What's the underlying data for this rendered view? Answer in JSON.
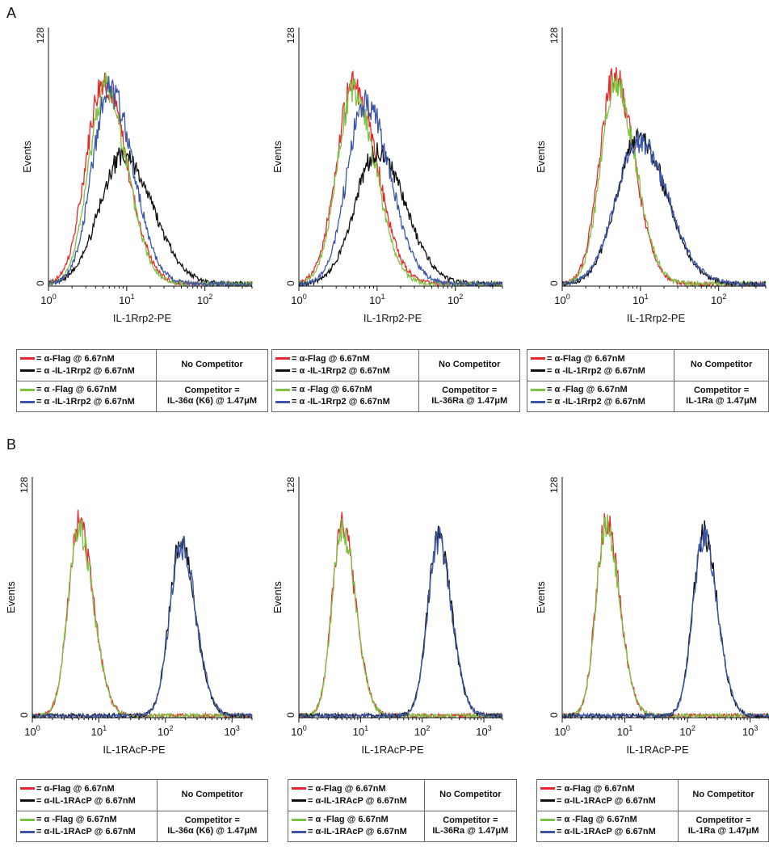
{
  "panels": {
    "a": "A",
    "b": "B"
  },
  "colors": {
    "red": "#e8262e",
    "black": "#111111",
    "green": "#7dc242",
    "blue": "#3c56a8"
  },
  "legend_symbol": "=",
  "legends": [
    {
      "row1_a": "α-Flag @ 6.67nM",
      "row1_b": "α -IL-1Rrp2 @ 6.67nM",
      "row1_comp": "No Competitor",
      "row2_a": "α -Flag @ 6.67nM",
      "row2_b": "α -IL-1Rrp2 @ 6.67nM",
      "row2_comp_1": "Competitor =",
      "row2_comp_2": "IL-36α (K6) @ 1.47μM"
    },
    {
      "row1_a": "α-Flag @ 6.67nM",
      "row1_b": "α -IL-1Rrp2 @ 6.67nM",
      "row1_comp": "No Competitor",
      "row2_a": "α -Flag @ 6.67nM",
      "row2_b": "α -IL-1Rrp2 @ 6.67nM",
      "row2_comp_1": "Competitor =",
      "row2_comp_2": "IL-36Ra @ 1.47μM"
    },
    {
      "row1_a": "α-Flag @ 6.67nM",
      "row1_b": "α -IL-1Rrp2 @ 6.67nM",
      "row1_comp": "No Competitor",
      "row2_a": "α -Flag @ 6.67nM",
      "row2_b": "α -IL-1Rrp2 @ 6.67nM",
      "row2_comp_1": "Competitor =",
      "row2_comp_2": "IL-1Ra @ 1.47μM"
    },
    {
      "row1_a": "α-Flag @ 6.67nM",
      "row1_b": "α-IL-1RAcP @ 6.67nM",
      "row1_comp": "No Competitor",
      "row2_a": "α -Flag @ 6.67nM",
      "row2_b": "α-IL-1RAcP @ 6.67nM",
      "row2_comp_1": "Competitor =",
      "row2_comp_2": "IL-36α (K6) @ 1.47μM"
    },
    {
      "row1_a": "α-Flag @ 6.67nM",
      "row1_b": "α-IL-1RAcP @ 6.67nM",
      "row1_comp": "No Competitor",
      "row2_a": "α -Flag @ 6.67nM",
      "row2_b": "α-IL-1RAcP @ 6.67nM",
      "row2_comp_1": "Competitor =",
      "row2_comp_2": "IL-36Ra @ 1.47μM"
    },
    {
      "row1_a": "α-Flag @ 6.67nM",
      "row1_b": "α-IL-1RAcP @ 6.67nM",
      "row1_comp": "No Competitor",
      "row2_a": "α -Flag @ 6.67nM",
      "row2_b": "α-IL-1RAcP @ 6.67nM",
      "row2_comp_1": "Competitor =",
      "row2_comp_2": "IL-1Ra @ 1.47μM"
    }
  ],
  "chart_data": [
    {
      "type": "area",
      "xlabel": "IL-1Rrp2-PE",
      "ylabel": "Events",
      "xscale": "log",
      "xlim": [
        1,
        400
      ],
      "ylim": [
        0,
        128
      ],
      "x_ticks": [
        "0",
        "1",
        "2"
      ],
      "y_ticks": [
        "0",
        "128"
      ],
      "series": [
        {
          "color": "red",
          "peak_x": 5.0,
          "peak_y": 101,
          "width": 0.22,
          "tail": 0.3
        },
        {
          "color": "black",
          "peak_x": 9.0,
          "peak_y": 63,
          "width": 0.3,
          "tail": 0.38
        },
        {
          "color": "green",
          "peak_x": 5.3,
          "peak_y": 97,
          "width": 0.21,
          "tail": 0.28
        },
        {
          "color": "blue",
          "peak_x": 6.0,
          "peak_y": 96,
          "width": 0.22,
          "tail": 0.3
        }
      ]
    },
    {
      "type": "area",
      "xlabel": "IL-1Rrp2-PE",
      "ylabel": "Events",
      "xscale": "log",
      "xlim": [
        1,
        400
      ],
      "ylim": [
        0,
        128
      ],
      "x_ticks": [
        "0",
        "1",
        "2"
      ],
      "y_ticks": [
        "0",
        "128"
      ],
      "series": [
        {
          "color": "red",
          "peak_x": 5.0,
          "peak_y": 98,
          "width": 0.22,
          "tail": 0.3
        },
        {
          "color": "black",
          "peak_x": 10.0,
          "peak_y": 65,
          "width": 0.28,
          "tail": 0.36
        },
        {
          "color": "green",
          "peak_x": 5.0,
          "peak_y": 96,
          "width": 0.21,
          "tail": 0.28
        },
        {
          "color": "blue",
          "peak_x": 7.0,
          "peak_y": 90,
          "width": 0.23,
          "tail": 0.32
        }
      ]
    },
    {
      "type": "area",
      "xlabel": "IL-1Rrp2-PE",
      "ylabel": "Events",
      "xscale": "log",
      "xlim": [
        1,
        400
      ],
      "ylim": [
        0,
        128
      ],
      "x_ticks": [
        "0",
        "1",
        "2"
      ],
      "y_ticks": [
        "0",
        "128"
      ],
      "series": [
        {
          "color": "red",
          "peak_x": 4.6,
          "peak_y": 102,
          "width": 0.19,
          "tail": 0.26
        },
        {
          "color": "green",
          "peak_x": 4.8,
          "peak_y": 98,
          "width": 0.19,
          "tail": 0.26
        },
        {
          "color": "black",
          "peak_x": 9.5,
          "peak_y": 72,
          "width": 0.28,
          "tail": 0.36
        },
        {
          "color": "blue",
          "peak_x": 9.5,
          "peak_y": 71,
          "width": 0.29,
          "tail": 0.37
        }
      ]
    },
    {
      "type": "area",
      "xlabel": "IL-1RAcP-PE",
      "ylabel": "Events",
      "xscale": "log",
      "xlim": [
        1,
        2000
      ],
      "ylim": [
        0,
        128
      ],
      "x_ticks": [
        "0",
        "1",
        "2",
        "3"
      ],
      "y_ticks": [
        "0",
        "128"
      ],
      "series": [
        {
          "color": "red",
          "peak_x": 5.0,
          "peak_y": 102,
          "width": 0.16,
          "tail": 0.22
        },
        {
          "color": "green",
          "peak_x": 5.0,
          "peak_y": 100,
          "width": 0.16,
          "tail": 0.22
        },
        {
          "color": "black",
          "peak_x": 170,
          "peak_y": 92,
          "width": 0.17,
          "tail": 0.22
        },
        {
          "color": "blue",
          "peak_x": 172,
          "peak_y": 91,
          "width": 0.17,
          "tail": 0.22
        }
      ]
    },
    {
      "type": "area",
      "xlabel": "IL-1RAcP-PE",
      "ylabel": "Events",
      "xscale": "log",
      "xlim": [
        1,
        2000
      ],
      "ylim": [
        0,
        128
      ],
      "x_ticks": [
        "0",
        "1",
        "2",
        "3"
      ],
      "y_ticks": [
        "0",
        "128"
      ],
      "series": [
        {
          "color": "red",
          "peak_x": 5.0,
          "peak_y": 102,
          "width": 0.16,
          "tail": 0.22
        },
        {
          "color": "green",
          "peak_x": 5.0,
          "peak_y": 100,
          "width": 0.16,
          "tail": 0.22
        },
        {
          "color": "black",
          "peak_x": 180,
          "peak_y": 94,
          "width": 0.17,
          "tail": 0.22
        },
        {
          "color": "blue",
          "peak_x": 182,
          "peak_y": 93,
          "width": 0.17,
          "tail": 0.22
        }
      ]
    },
    {
      "type": "area",
      "xlabel": "IL-1RAcP-PE",
      "ylabel": "Events",
      "xscale": "log",
      "xlim": [
        1,
        2000
      ],
      "ylim": [
        0,
        128
      ],
      "x_ticks": [
        "0",
        "1",
        "2",
        "3"
      ],
      "y_ticks": [
        "0",
        "128"
      ],
      "series": [
        {
          "color": "red",
          "peak_x": 5.0,
          "peak_y": 102,
          "width": 0.16,
          "tail": 0.22
        },
        {
          "color": "green",
          "peak_x": 5.0,
          "peak_y": 100,
          "width": 0.16,
          "tail": 0.22
        },
        {
          "color": "black",
          "peak_x": 180,
          "peak_y": 97,
          "width": 0.17,
          "tail": 0.22
        },
        {
          "color": "blue",
          "peak_x": 182,
          "peak_y": 96,
          "width": 0.17,
          "tail": 0.22
        }
      ]
    }
  ]
}
